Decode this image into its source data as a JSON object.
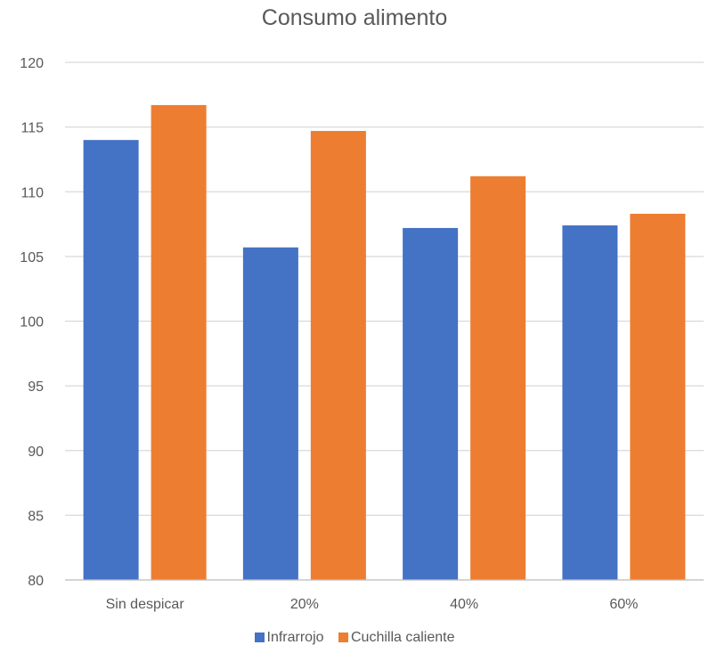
{
  "chart_data": {
    "type": "bar",
    "title": "Consumo alimento",
    "categories": [
      "Sin despicar",
      "20%",
      "40%",
      "60%"
    ],
    "series": [
      {
        "name": "Infrarrojo",
        "color": "#4472C4",
        "values": [
          114.0,
          105.7,
          107.2,
          107.4
        ]
      },
      {
        "name": "Cuchilla caliente",
        "color": "#ED7D31",
        "values": [
          116.7,
          114.7,
          111.2,
          108.3
        ]
      }
    ],
    "ylim": [
      80,
      120
    ],
    "yticks": [
      80,
      85,
      90,
      95,
      100,
      105,
      110,
      115,
      120
    ],
    "grid": true,
    "legend_position": "bottom"
  }
}
